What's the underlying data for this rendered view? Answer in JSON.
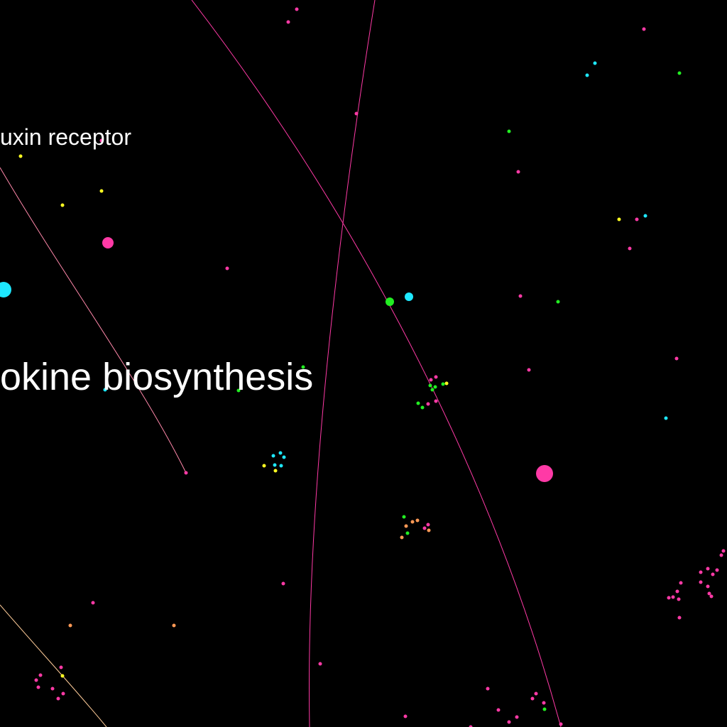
{
  "labels": {
    "auxin_receptor": "uxin receptor",
    "cytokine_biosynthesis": "okine biosynthesis"
  },
  "colors": {
    "background": "#000000",
    "label": "#ffffff",
    "pink": "#ff3aa6",
    "cyan": "#1ee8ff",
    "green": "#22ee22",
    "yellow": "#ffff22",
    "orange": "#ff9955",
    "edge_pink": "#ff3aa6",
    "edge_salmon": "#ffaa88"
  }
}
